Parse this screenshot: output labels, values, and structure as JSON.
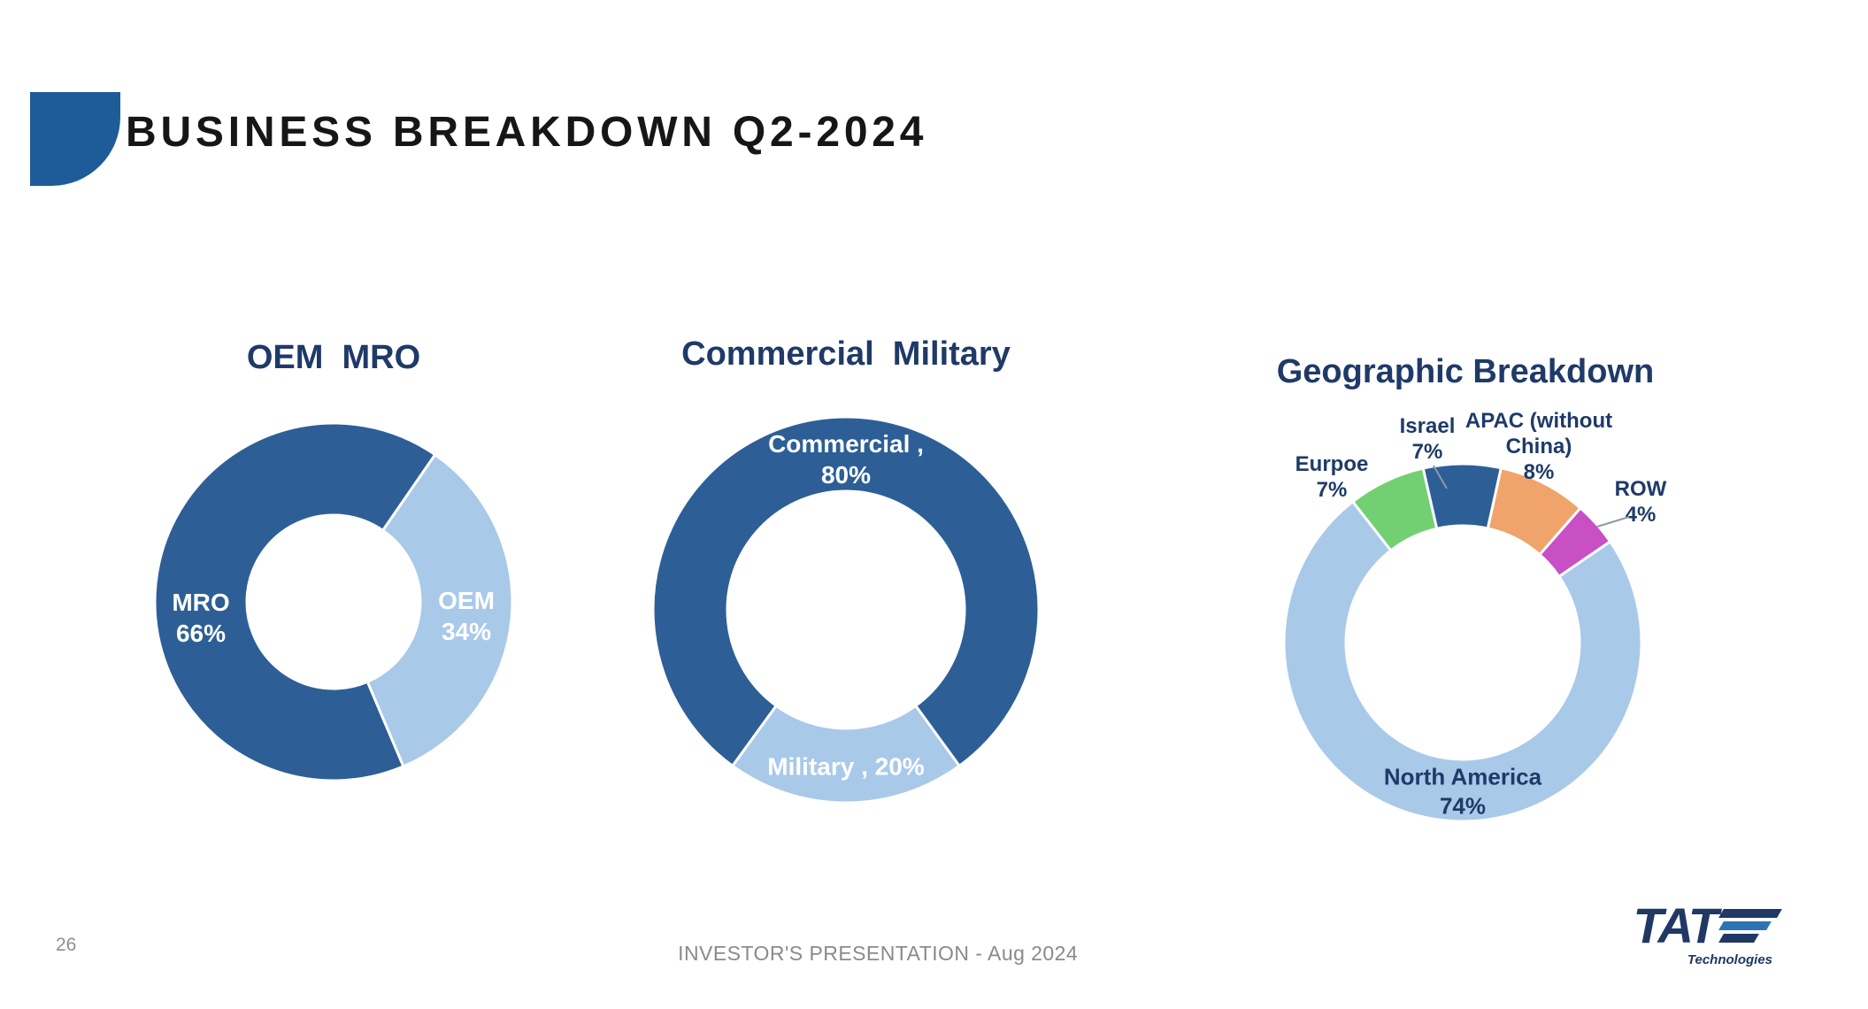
{
  "slide": {
    "title": "BUSINESS BREAKDOWN Q2-2024"
  },
  "footer": {
    "page_number": "26",
    "caption": "INVESTOR'S PRESENTATION - Aug 2024"
  },
  "logo": {
    "name": "TAT",
    "subtitle": "Technologies"
  },
  "palette": {
    "dark_blue": "#2D5F96",
    "light_blue": "#A9C9E9",
    "green": "#72D072",
    "orange": "#F0A46C",
    "magenta": "#C94FC4",
    "navy_text": "#1F3A68",
    "decoration_blue": "#1E5C99"
  },
  "chart_data": [
    {
      "type": "donut",
      "title": "OEM  MRO",
      "start_angle": 157,
      "segments": [
        {
          "label": "MRO",
          "value": 66,
          "color": "#2D5F96",
          "display": "MRO\n66%"
        },
        {
          "label": "OEM",
          "value": 34,
          "color": "#A9C9E9",
          "display": "OEM\n34%"
        }
      ]
    },
    {
      "type": "donut",
      "title": "Commercial  Military",
      "start_angle": 216,
      "segments": [
        {
          "label": "Commercial",
          "value": 80,
          "color": "#2D5F96",
          "display": "Commercial ,\n80%"
        },
        {
          "label": "Military",
          "value": 20,
          "color": "#A9C9E9",
          "display": "Military , 20%"
        }
      ]
    },
    {
      "type": "donut",
      "title": "Geographic Breakdown",
      "start_angle": 322,
      "segments": [
        {
          "label": "Eurpoe",
          "value": 7,
          "color": "#72D072",
          "display": "Eurpoe\n7%"
        },
        {
          "label": "Israel",
          "value": 7,
          "color": "#2D5F96",
          "display": "Israel\n7%"
        },
        {
          "label": "APAC (without China)",
          "value": 8,
          "color": "#F0A46C",
          "display": "APAC (without\nChina)\n8%"
        },
        {
          "label": "ROW",
          "value": 4,
          "color": "#C94FC4",
          "display": "ROW\n4%"
        },
        {
          "label": "North America",
          "value": 74,
          "color": "#A9C9E9",
          "display": "North America\n74%"
        }
      ]
    }
  ]
}
